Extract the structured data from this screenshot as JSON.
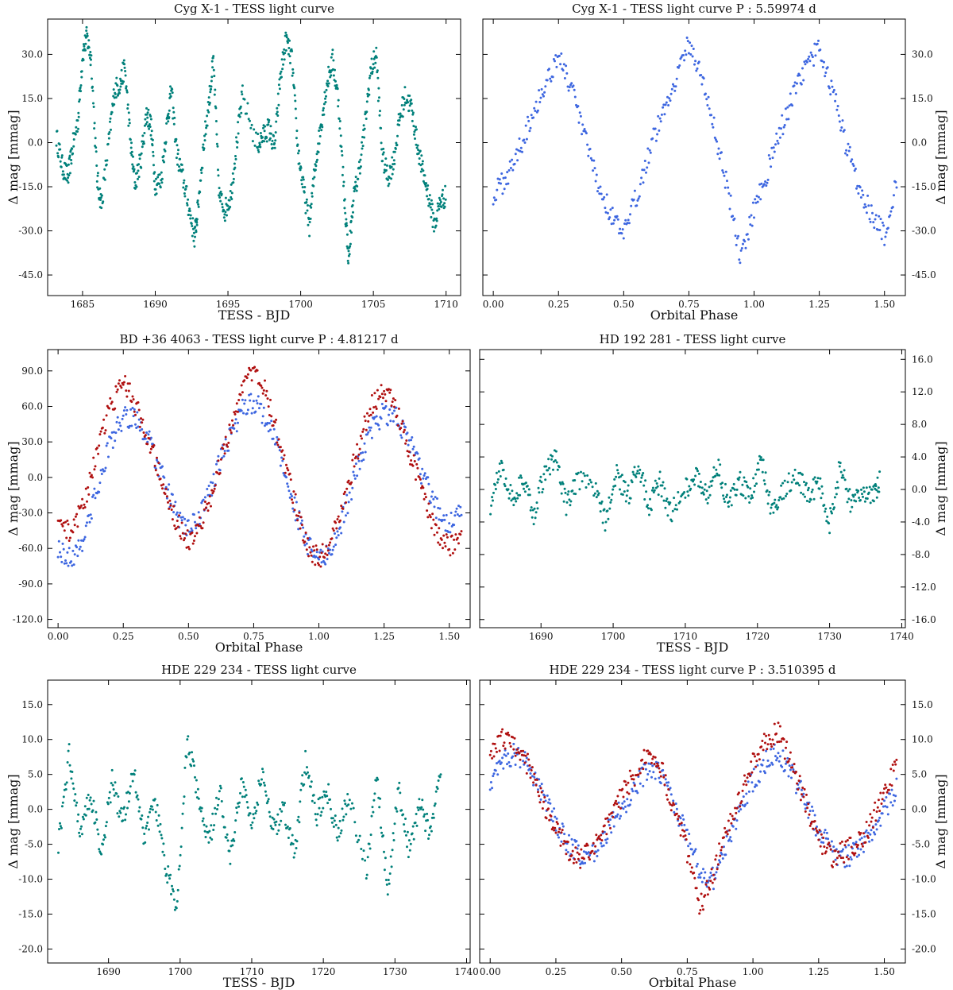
{
  "colors": {
    "teal": "#00807a",
    "blue": "#3d66e0",
    "red": "#b01010"
  },
  "chart_data": [
    {
      "id": "cygx1_bjd",
      "type": "scatter",
      "title": "Cyg X-1 - TESS light curve",
      "xlabel": "TESS - BJD",
      "ylabel": "Δ mag [mmag]",
      "xlim": [
        1682.6,
        1711.0
      ],
      "ylim": [
        42,
        -52
      ],
      "yaxis_side": "left",
      "xticks": [
        1685,
        1690,
        1695,
        1700,
        1705,
        1710
      ],
      "xticklabels": [
        "1685",
        "1690",
        "1695",
        "1700",
        "1705",
        "1710"
      ],
      "yticks": [
        -45,
        -30,
        -15,
        0,
        15,
        30
      ],
      "yticklabels": [
        "-45.0",
        "-30.0",
        "-15.0",
        "0.0",
        "15.0",
        "30.0"
      ],
      "series": [
        {
          "name": "TESS",
          "color": "teal",
          "x": [
            1683.2,
            1683.6,
            1684.0,
            1684.3,
            1684.7,
            1685.0,
            1685.3,
            1685.6,
            1686.0,
            1686.3,
            1686.8,
            1687.2,
            1687.6,
            1687.9,
            1688.3,
            1688.6,
            1689.0,
            1689.4,
            1689.7,
            1690.0,
            1690.4,
            1690.8,
            1691.1,
            1691.5,
            1691.9,
            1692.3,
            1692.7,
            1692.9,
            1693.3,
            1693.7,
            1694.0,
            1694.4,
            1694.8,
            1695.2,
            1695.6,
            1696.0,
            1697.0,
            1697.4,
            1697.8,
            1698.2,
            1698.6,
            1699.0,
            1699.4,
            1699.8,
            1700.2,
            1700.6,
            1701.0,
            1701.4,
            1701.8,
            1702.2,
            1702.6,
            1703.0,
            1703.3,
            1703.6,
            1704.0,
            1704.4,
            1704.8,
            1705.2,
            1705.6,
            1706.0,
            1706.4,
            1706.8,
            1707.2,
            1707.6,
            1708.0,
            1708.4,
            1708.8,
            1709.2,
            1709.6,
            1710.0
          ],
          "y": [
            2,
            -8,
            -12,
            -2,
            8,
            30,
            36,
            28,
            -12,
            -21,
            0,
            18,
            20,
            26,
            0,
            -14,
            -6,
            10,
            6,
            -14,
            -13,
            6,
            18,
            -4,
            -12,
            -22,
            -32,
            -24,
            -2,
            14,
            28,
            -18,
            -23,
            -18,
            0,
            16,
            -1,
            2,
            5,
            -2,
            22,
            35,
            28,
            -2,
            -16,
            -28,
            -8,
            6,
            20,
            28,
            14,
            -18,
            -40,
            -20,
            -10,
            5,
            24,
            30,
            -4,
            -12,
            -6,
            8,
            16,
            12,
            0,
            -10,
            -18,
            -28,
            -20,
            -18
          ]
        }
      ]
    },
    {
      "id": "cygx1_phase",
      "type": "scatter",
      "title": "Cyg X-1 - TESS light curve P : 5.59974 d",
      "xlabel": "Orbital Phase",
      "ylabel": "Δ mag [mmag]",
      "xlim": [
        -0.04,
        1.58
      ],
      "ylim": [
        42,
        -52
      ],
      "yaxis_side": "right",
      "xticks": [
        0,
        0.25,
        0.5,
        0.75,
        1.0,
        1.25,
        1.5
      ],
      "xticklabels": [
        "0.00",
        "0.25",
        "0.50",
        "0.75",
        "1.00",
        "1.25",
        "1.50"
      ],
      "yticks": [
        -45,
        -30,
        -15,
        0,
        15,
        30
      ],
      "yticklabels": [
        "-45.0",
        "-30.0",
        "-15.0",
        "0.0",
        "15.0",
        "30.0"
      ],
      "series": [
        {
          "name": "TESS",
          "color": "blue",
          "x": [
            0.0,
            0.05,
            0.1,
            0.15,
            0.2,
            0.25,
            0.3,
            0.35,
            0.4,
            0.45,
            0.5,
            0.55,
            0.6,
            0.65,
            0.7,
            0.75,
            0.8,
            0.85,
            0.9,
            0.95,
            1.0,
            1.05,
            1.1,
            1.15,
            1.2,
            1.25,
            1.3,
            1.35,
            1.4,
            1.45,
            1.5,
            1.55
          ],
          "y": [
            -18,
            -12,
            -2,
            10,
            20,
            30,
            18,
            2,
            -14,
            -24,
            -32,
            -18,
            -2,
            10,
            22,
            34,
            22,
            4,
            -16,
            -40,
            -22,
            -10,
            4,
            16,
            26,
            32,
            18,
            0,
            -14,
            -24,
            -32,
            -12
          ]
        }
      ]
    },
    {
      "id": "bd36_phase",
      "type": "scatter",
      "title": "BD +36 4063 - TESS light curve P : 4.81217 d",
      "xlabel": "Orbital Phase",
      "ylabel": "Δ mag [mmag]",
      "xlim": [
        -0.04,
        1.58
      ],
      "ylim": [
        108,
        -127
      ],
      "yaxis_side": "left",
      "xticks": [
        0,
        0.25,
        0.5,
        0.75,
        1.0,
        1.25,
        1.5
      ],
      "xticklabels": [
        "0.00",
        "0.25",
        "0.50",
        "0.75",
        "1.00",
        "1.25",
        "1.50"
      ],
      "yticks": [
        -120,
        -90,
        -60,
        -30,
        0,
        30,
        60,
        90
      ],
      "yticklabels": [
        "-120.0",
        "-90.0",
        "-60.0",
        "-30.0",
        "0.0",
        "30.0",
        "60.0",
        "90.0"
      ],
      "series": [
        {
          "name": "blue",
          "color": "blue",
          "x": [
            0.0,
            0.05,
            0.1,
            0.15,
            0.2,
            0.25,
            0.3,
            0.35,
            0.4,
            0.45,
            0.5,
            0.55,
            0.6,
            0.65,
            0.7,
            0.75,
            0.8,
            0.85,
            0.9,
            0.95,
            1.0,
            1.05,
            1.1,
            1.15,
            1.2,
            1.25,
            1.3,
            1.35,
            1.4,
            1.45,
            1.5,
            1.55
          ],
          "y": [
            -60,
            -70,
            -50,
            -10,
            30,
            50,
            50,
            30,
            0,
            -30,
            -45,
            -30,
            0,
            30,
            55,
            65,
            50,
            20,
            -20,
            -55,
            -70,
            -60,
            -30,
            10,
            40,
            55,
            50,
            30,
            0,
            -25,
            -40,
            -30
          ]
        },
        {
          "name": "red",
          "color": "red",
          "x": [
            0.0,
            0.05,
            0.1,
            0.15,
            0.2,
            0.25,
            0.3,
            0.35,
            0.4,
            0.45,
            0.5,
            0.55,
            0.6,
            0.65,
            0.7,
            0.75,
            0.8,
            0.85,
            0.9,
            0.95,
            1.0,
            1.05,
            1.1,
            1.15,
            1.2,
            1.25,
            1.3,
            1.35,
            1.4,
            1.45,
            1.5,
            1.55
          ],
          "y": [
            -40,
            -45,
            -20,
            20,
            60,
            80,
            60,
            30,
            0,
            -35,
            -55,
            -40,
            -5,
            35,
            70,
            95,
            70,
            30,
            -15,
            -55,
            -70,
            -50,
            -15,
            25,
            60,
            75,
            55,
            20,
            -15,
            -45,
            -60,
            -45
          ]
        }
      ]
    },
    {
      "id": "hd192281_bjd",
      "type": "scatter",
      "title": "HD 192 281 - TESS light curve",
      "xlabel": "TESS - BJD",
      "ylabel": "Δ mag [mmag]",
      "xlim": [
        1681.5,
        1740.5
      ],
      "ylim": [
        17.2,
        -17
      ],
      "yaxis_side": "right",
      "xticks": [
        1690,
        1700,
        1710,
        1720,
        1730,
        1740
      ],
      "xticklabels": [
        "1690",
        "1700",
        "1710",
        "1720",
        "1730",
        "1740"
      ],
      "yticks": [
        -16,
        -12,
        -8,
        -4,
        0,
        4,
        8,
        12,
        16
      ],
      "yticklabels": [
        "-16.0",
        "-12.0",
        "-8.0",
        "-4.0",
        "0.0",
        "4.0",
        "8.0",
        "12.0",
        "16.0"
      ],
      "series": [
        {
          "name": "TESS",
          "color": "teal",
          "x": [
            1683.0,
            1684.5,
            1686.0,
            1687.5,
            1689.0,
            1690.5,
            1692.0,
            1693.5,
            1695.0,
            1697.5,
            1699.0,
            1700.5,
            1702.0,
            1703.5,
            1705.0,
            1706.5,
            1708.0,
            1710.0,
            1711.5,
            1713.0,
            1714.5,
            1716.0,
            1717.5,
            1719.0,
            1720.5,
            1722.0,
            1723.5,
            1725.5,
            1727.0,
            1728.5,
            1730.0,
            1731.5,
            1733.0,
            1734.5,
            1736.0,
            1737.0
          ],
          "y": [
            -2,
            3,
            -1,
            1,
            -3,
            2,
            4,
            -2,
            1,
            0,
            -4,
            2,
            -1,
            3,
            -2,
            1,
            -3,
            0,
            2,
            -1,
            3,
            -2,
            1,
            -1,
            4,
            -3,
            0,
            2,
            -1,
            1,
            -4,
            3,
            -2,
            0,
            -1,
            1
          ]
        }
      ]
    },
    {
      "id": "hde229234_bjd",
      "type": "scatter",
      "title": "HDE 229 234 - TESS light curve",
      "xlabel": "TESS - BJD",
      "ylabel": "Δ mag [mmag]",
      "xlim": [
        1681.5,
        1740.5
      ],
      "ylim": [
        18.5,
        -22
      ],
      "yaxis_side": "left",
      "xticks": [
        1690,
        1700,
        1710,
        1720,
        1730,
        1740
      ],
      "xticklabels": [
        "1690",
        "1700",
        "1710",
        "1720",
        "1730",
        "1740"
      ],
      "yticks": [
        -20,
        -15,
        -10,
        -5,
        0,
        5,
        10,
        15
      ],
      "yticklabels": [
        "-20.0",
        "-15.0",
        "-10.0",
        "-5.0",
        "0.0",
        "5.0",
        "10.0",
        "15.0"
      ],
      "series": [
        {
          "name": "TESS",
          "color": "teal",
          "x": [
            1683.0,
            1684.5,
            1686.0,
            1687.5,
            1689.0,
            1690.5,
            1692.0,
            1693.5,
            1695.0,
            1696.5,
            1698.0,
            1699.5,
            1701.0,
            1702.5,
            1704.0,
            1705.5,
            1707.0,
            1708.5,
            1710.0,
            1711.5,
            1713.0,
            1714.5,
            1716.0,
            1717.5,
            1719.0,
            1720.5,
            1722.0,
            1723.5,
            1726.0,
            1727.5,
            1729.0,
            1730.5,
            1732.0,
            1733.5,
            1735.0,
            1736.5
          ],
          "y": [
            -5,
            8,
            -3,
            2,
            -6,
            4,
            -2,
            6,
            -4,
            1,
            -8,
            -15,
            10,
            2,
            -5,
            3,
            -7,
            4,
            -2,
            5,
            -3,
            0,
            -6,
            7,
            -1,
            3,
            -4,
            2,
            -9,
            5,
            -12,
            3,
            -6,
            1,
            -4,
            6
          ]
        }
      ]
    },
    {
      "id": "hde229234_phase",
      "type": "scatter",
      "title": "HDE 229 234 - TESS light curve P : 3.510395 d",
      "xlabel": "Orbital Phase",
      "ylabel": "Δ mag [mmag]",
      "xlim": [
        -0.04,
        1.58
      ],
      "ylim": [
        18.5,
        -22
      ],
      "yaxis_side": "right",
      "xticks": [
        0,
        0.25,
        0.5,
        0.75,
        1.0,
        1.25,
        1.5
      ],
      "xticklabels": [
        "0.00",
        "0.25",
        "0.50",
        "0.75",
        "1.00",
        "1.25",
        "1.50"
      ],
      "yticks": [
        -20,
        -15,
        -10,
        -5,
        0,
        5,
        10,
        15
      ],
      "yticklabels": [
        "-20.0",
        "-15.0",
        "-10.0",
        "-5.0",
        "0.0",
        "5.0",
        "10.0",
        "15.0"
      ],
      "series": [
        {
          "name": "blue",
          "color": "blue",
          "x": [
            0.0,
            0.05,
            0.1,
            0.15,
            0.2,
            0.25,
            0.3,
            0.35,
            0.4,
            0.45,
            0.5,
            0.55,
            0.6,
            0.65,
            0.7,
            0.75,
            0.8,
            0.85,
            0.9,
            0.95,
            1.0,
            1.05,
            1.1,
            1.15,
            1.2,
            1.25,
            1.3,
            1.35,
            1.4,
            1.45,
            1.5,
            1.55
          ],
          "y": [
            4,
            7,
            8,
            6,
            2,
            -2,
            -5,
            -7,
            -6,
            -3,
            0,
            3,
            6,
            5,
            1,
            -4,
            -9,
            -10,
            -5,
            0,
            4,
            7,
            8,
            5,
            1,
            -3,
            -6,
            -7,
            -6,
            -3,
            0,
            3
          ]
        },
        {
          "name": "red",
          "color": "red",
          "x": [
            0.0,
            0.05,
            0.1,
            0.15,
            0.2,
            0.25,
            0.3,
            0.35,
            0.4,
            0.45,
            0.5,
            0.55,
            0.6,
            0.65,
            0.7,
            0.75,
            0.8,
            0.85,
            0.9,
            0.95,
            1.0,
            1.05,
            1.1,
            1.15,
            1.2,
            1.25,
            1.3,
            1.35,
            1.4,
            1.45,
            1.5,
            1.55
          ],
          "y": [
            8,
            10,
            9,
            6,
            1,
            -3,
            -6,
            -7,
            -5,
            -2,
            2,
            5,
            8,
            6,
            0,
            -6,
            -14,
            -9,
            -3,
            2,
            7,
            10,
            11,
            6,
            1,
            -4,
            -7,
            -6,
            -5,
            -2,
            3,
            6
          ]
        }
      ]
    }
  ]
}
